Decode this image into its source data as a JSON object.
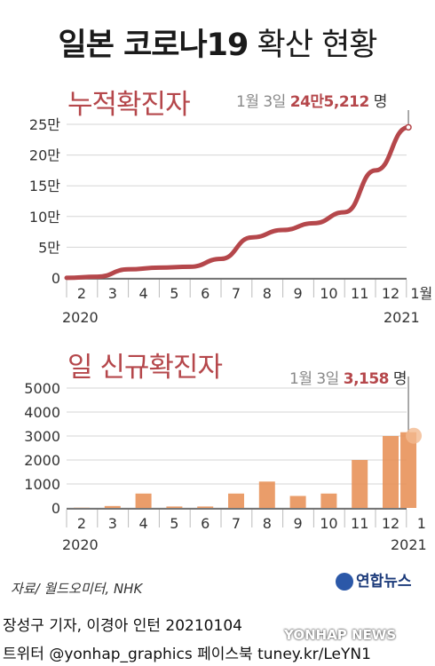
{
  "title": {
    "main": "일본 코로나19",
    "sub": "확산 현황"
  },
  "cumulative": {
    "section_title": "누적확진자",
    "annotation": {
      "date": "1월 3일",
      "value": "24만5,212",
      "unit": "명"
    }
  },
  "daily": {
    "section_title": "일 신규확진자",
    "annotation": {
      "date": "1월 3일",
      "value": "3,158",
      "unit": "명"
    }
  },
  "source": "자료/ 월드오미터, NHK",
  "logo": "연합뉴스",
  "credit": {
    "line1": "장성구 기자, 이경아 인턴  20210104",
    "line2": "트위터 @yonhap_graphics  페이스북 tuney.kr/LeYN1"
  },
  "watermark": "YONHAP NEWS",
  "colors": {
    "line": "#b5474b",
    "bar": "#e8925a",
    "accent": "#b5474b"
  },
  "chart_data": [
    {
      "type": "line",
      "title": "누적확진자",
      "y_tick_labels": [
        "0",
        "5만",
        "10만",
        "15만",
        "20만",
        "25만"
      ],
      "y_ticks": [
        0,
        50000,
        100000,
        150000,
        200000,
        250000
      ],
      "ylim": [
        0,
        250000
      ],
      "x_tick_labels": [
        "2",
        "3",
        "4",
        "5",
        "6",
        "7",
        "8",
        "9",
        "10",
        "11",
        "12",
        "1월"
      ],
      "x_year_labels": [
        "2020",
        "2021"
      ],
      "series": [
        {
          "x": [
            "2020-02",
            "2020-03",
            "2020-04",
            "2020-05",
            "2020-06",
            "2020-07",
            "2020-08",
            "2020-09",
            "2020-10",
            "2020-11",
            "2020-12",
            "2021-01-03"
          ],
          "values": [
            200,
            2000,
            14000,
            16800,
            18200,
            31000,
            66000,
            78000,
            89000,
            107000,
            175000,
            245212
          ]
        }
      ]
    },
    {
      "type": "bar",
      "title": "일 신규확진자",
      "y_tick_labels": [
        "0",
        "1000",
        "2000",
        "3000",
        "4000",
        "5000"
      ],
      "y_ticks": [
        0,
        1000,
        2000,
        3000,
        4000,
        5000
      ],
      "ylim": [
        0,
        5000
      ],
      "x_tick_labels": [
        "2",
        "3",
        "4",
        "5",
        "6",
        "7",
        "8",
        "9",
        "10",
        "11",
        "12",
        "1"
      ],
      "x_year_labels": [
        "2020",
        "2021"
      ],
      "series": [
        {
          "x": [
            "2020-02",
            "2020-03",
            "2020-04",
            "2020-05",
            "2020-06",
            "2020-07",
            "2020-08",
            "2020-09",
            "2020-10",
            "2020-11",
            "2020-12",
            "2021-01-03"
          ],
          "values": [
            10,
            80,
            600,
            60,
            60,
            600,
            1100,
            500,
            600,
            2000,
            3000,
            3158
          ]
        }
      ]
    }
  ]
}
